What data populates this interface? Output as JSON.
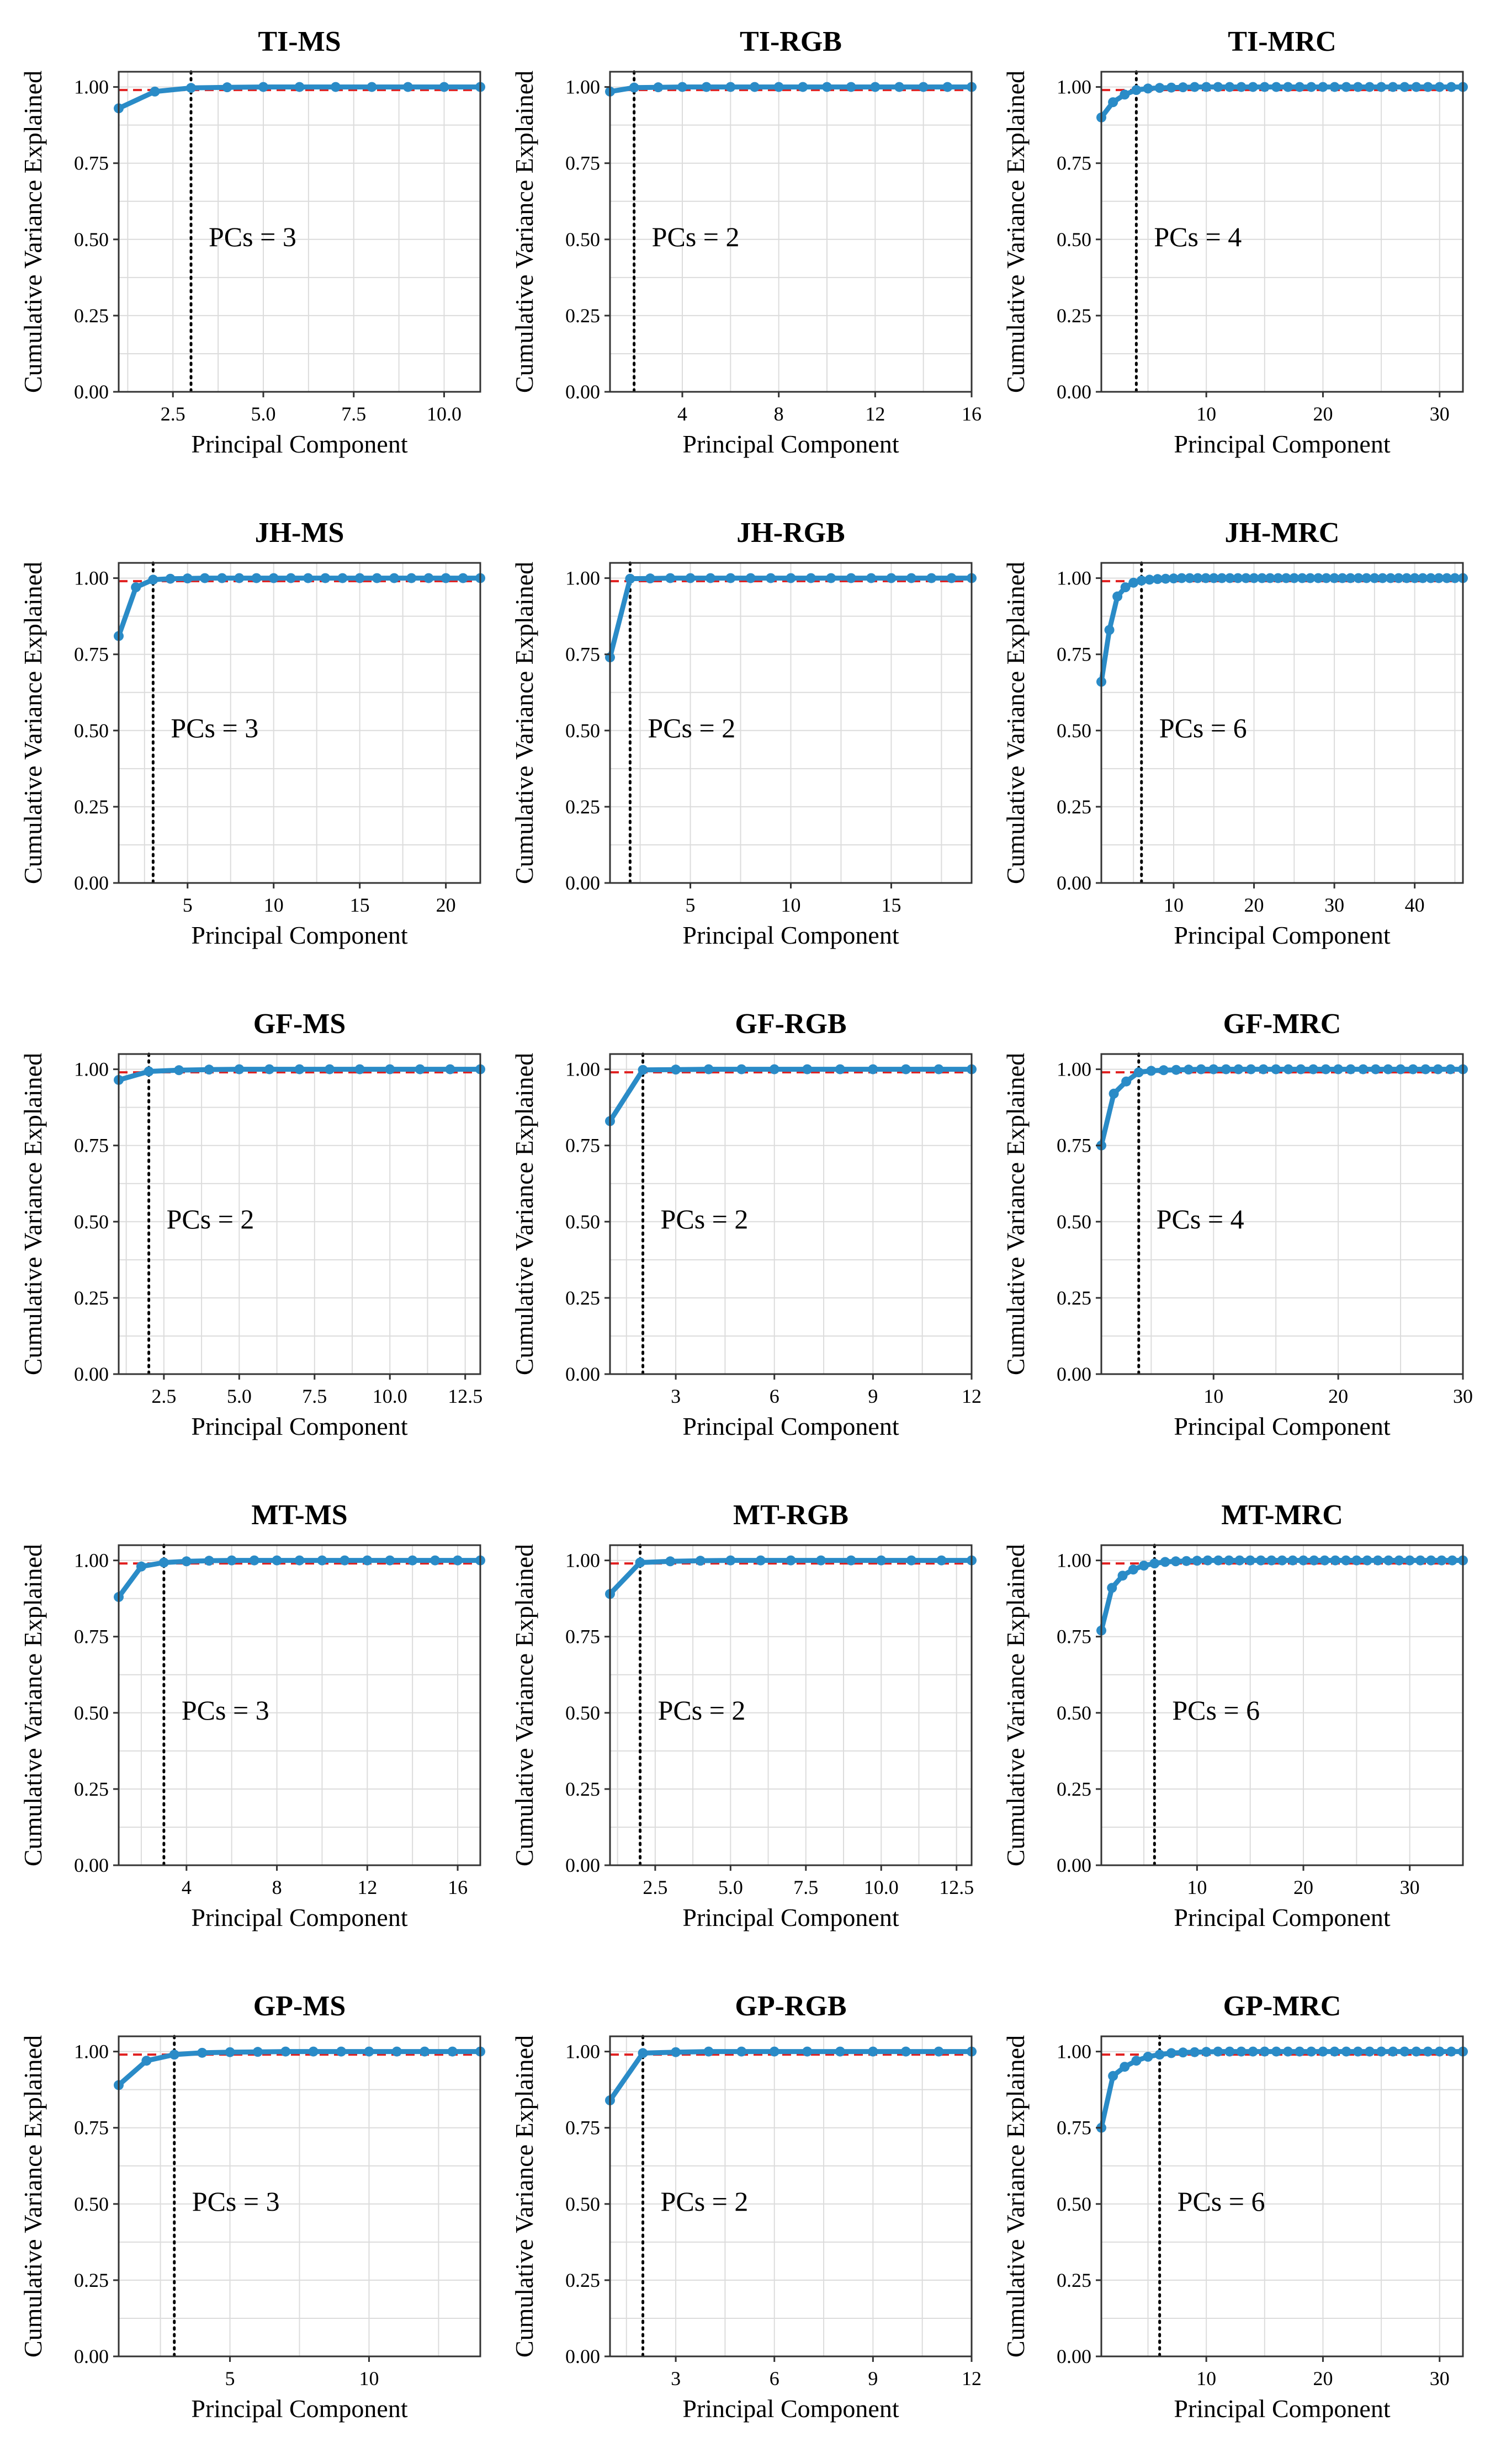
{
  "chart_data": [
    {
      "type": "line",
      "title": "TI-MS",
      "xlabel": "Principal Component",
      "ylabel": "Cumulative Variance Explained",
      "x": [
        1,
        2,
        3,
        4,
        5,
        6,
        7,
        8,
        9,
        10,
        11
      ],
      "values": [
        0.93,
        0.985,
        0.997,
        0.999,
        1.0,
        1.0,
        1.0,
        1.0,
        1.0,
        1.0,
        1.0
      ],
      "xlim": [
        1,
        11
      ],
      "ylim": [
        0,
        1.05
      ],
      "xticks": [
        2.5,
        5.0,
        7.5,
        10.0
      ],
      "xtick_labels": [
        "2.5",
        "5.0",
        "7.5",
        "10.0"
      ],
      "yticks": [
        0,
        0.25,
        0.5,
        0.75,
        1.0
      ],
      "ytick_labels": [
        "0.00",
        "0.25",
        "0.50",
        "0.75",
        "1.00"
      ],
      "threshold": 0.99,
      "vline": 3,
      "annotation": "PCs = 3",
      "grid": true
    },
    {
      "type": "line",
      "title": "TI-RGB",
      "xlabel": "Principal Component",
      "ylabel": "Cumulative Variance Explained",
      "x": [
        1,
        2,
        3,
        4,
        5,
        6,
        7,
        8,
        9,
        10,
        11,
        12,
        13,
        14,
        15,
        16
      ],
      "values": [
        0.985,
        0.998,
        0.999,
        1.0,
        1.0,
        1.0,
        1.0,
        1.0,
        1.0,
        1.0,
        1.0,
        1.0,
        1.0,
        1.0,
        1.0,
        1.0
      ],
      "xlim": [
        1,
        16
      ],
      "ylim": [
        0,
        1.05
      ],
      "xticks": [
        4,
        8,
        12,
        16
      ],
      "xtick_labels": [
        "4",
        "8",
        "12",
        "16"
      ],
      "yticks": [
        0,
        0.25,
        0.5,
        0.75,
        1.0
      ],
      "ytick_labels": [
        "0.00",
        "0.25",
        "0.50",
        "0.75",
        "1.00"
      ],
      "threshold": 0.99,
      "vline": 2,
      "annotation": "PCs = 2",
      "grid": true
    },
    {
      "type": "line",
      "title": "TI-MRC",
      "xlabel": "Principal Component",
      "ylabel": "Cumulative Variance Explained",
      "x": [
        1,
        2,
        3,
        4,
        5,
        6,
        7,
        8,
        9,
        10,
        11,
        12,
        13,
        14,
        15,
        16,
        17,
        18,
        19,
        20,
        21,
        22,
        23,
        24,
        25,
        26,
        27,
        28,
        29,
        30,
        31,
        32
      ],
      "values": [
        0.9,
        0.95,
        0.975,
        0.99,
        0.995,
        0.997,
        0.998,
        0.999,
        1,
        1,
        1,
        1,
        1,
        1,
        1,
        1,
        1,
        1,
        1,
        1,
        1,
        1,
        1,
        1,
        1,
        1,
        1,
        1,
        1,
        1,
        1,
        1
      ],
      "xlim": [
        1,
        32
      ],
      "ylim": [
        0,
        1.05
      ],
      "xticks": [
        10,
        20,
        30
      ],
      "xtick_labels": [
        "10",
        "20",
        "30"
      ],
      "yticks": [
        0,
        0.25,
        0.5,
        0.75,
        1.0
      ],
      "ytick_labels": [
        "0.00",
        "0.25",
        "0.50",
        "0.75",
        "1.00"
      ],
      "threshold": 0.99,
      "vline": 4,
      "annotation": "PCs = 4",
      "grid": true
    },
    {
      "type": "line",
      "title": "JH-MS",
      "xlabel": "Principal Component",
      "ylabel": "Cumulative Variance Explained",
      "x": [
        1,
        2,
        3,
        4,
        5,
        6,
        7,
        8,
        9,
        10,
        11,
        12,
        13,
        14,
        15,
        16,
        17,
        18,
        19,
        20,
        21,
        22
      ],
      "values": [
        0.81,
        0.97,
        0.995,
        0.998,
        0.999,
        1,
        1,
        1,
        1,
        1,
        1,
        1,
        1,
        1,
        1,
        1,
        1,
        1,
        1,
        1,
        1,
        1
      ],
      "xlim": [
        1,
        22
      ],
      "ylim": [
        0,
        1.05
      ],
      "xticks": [
        5,
        10,
        15,
        20
      ],
      "xtick_labels": [
        "5",
        "10",
        "15",
        "20"
      ],
      "yticks": [
        0,
        0.25,
        0.5,
        0.75,
        1.0
      ],
      "ytick_labels": [
        "0.00",
        "0.25",
        "0.50",
        "0.75",
        "1.00"
      ],
      "threshold": 0.99,
      "vline": 3,
      "annotation": "PCs = 3",
      "grid": true
    },
    {
      "type": "line",
      "title": "JH-RGB",
      "xlabel": "Principal Component",
      "ylabel": "Cumulative Variance Explained",
      "x": [
        1,
        2,
        3,
        4,
        5,
        6,
        7,
        8,
        9,
        10,
        11,
        12,
        13,
        14,
        15,
        16,
        17,
        18,
        19
      ],
      "values": [
        0.74,
        0.998,
        0.999,
        1,
        1,
        1,
        1,
        1,
        1,
        1,
        1,
        1,
        1,
        1,
        1,
        1,
        1,
        1,
        1
      ],
      "xlim": [
        1,
        19
      ],
      "ylim": [
        0,
        1.05
      ],
      "xticks": [
        5,
        10,
        15
      ],
      "xtick_labels": [
        "5",
        "10",
        "15"
      ],
      "yticks": [
        0,
        0.25,
        0.5,
        0.75,
        1.0
      ],
      "ytick_labels": [
        "0.00",
        "0.25",
        "0.50",
        "0.75",
        "1.00"
      ],
      "threshold": 0.99,
      "vline": 2,
      "annotation": "PCs = 2",
      "grid": true
    },
    {
      "type": "line",
      "title": "JH-MRC",
      "xlabel": "Principal Component",
      "ylabel": "Cumulative Variance Explained",
      "x": [
        1,
        2,
        3,
        4,
        5,
        6,
        7,
        8,
        9,
        10,
        11,
        12,
        13,
        14,
        15,
        16,
        17,
        18,
        19,
        20,
        21,
        22,
        23,
        24,
        25,
        26,
        27,
        28,
        29,
        30,
        31,
        32,
        33,
        34,
        35,
        36,
        37,
        38,
        39,
        40,
        41,
        42,
        43,
        44,
        45,
        46
      ],
      "values": [
        0.66,
        0.83,
        0.94,
        0.97,
        0.985,
        0.992,
        0.995,
        0.997,
        0.998,
        0.999,
        1,
        1,
        1,
        1,
        1,
        1,
        1,
        1,
        1,
        1,
        1,
        1,
        1,
        1,
        1,
        1,
        1,
        1,
        1,
        1,
        1,
        1,
        1,
        1,
        1,
        1,
        1,
        1,
        1,
        1,
        1,
        1,
        1,
        1,
        1,
        1
      ],
      "xlim": [
        1,
        46
      ],
      "ylim": [
        0,
        1.05
      ],
      "xticks": [
        10,
        20,
        30,
        40
      ],
      "xtick_labels": [
        "10",
        "20",
        "30",
        "40"
      ],
      "yticks": [
        0,
        0.25,
        0.5,
        0.75,
        1.0
      ],
      "ytick_labels": [
        "0.00",
        "0.25",
        "0.50",
        "0.75",
        "1.00"
      ],
      "threshold": 0.99,
      "vline": 6,
      "annotation": "PCs = 6",
      "grid": true
    },
    {
      "type": "line",
      "title": "GF-MS",
      "xlabel": "Principal Component",
      "ylabel": "Cumulative Variance Explained",
      "x": [
        1,
        2,
        3,
        4,
        5,
        6,
        7,
        8,
        9,
        10,
        11,
        12,
        13
      ],
      "values": [
        0.965,
        0.993,
        0.997,
        0.999,
        1,
        1,
        1,
        1,
        1,
        1,
        1,
        1,
        1
      ],
      "xlim": [
        1,
        13
      ],
      "ylim": [
        0,
        1.05
      ],
      "xticks": [
        2.5,
        5.0,
        7.5,
        10.0,
        12.5
      ],
      "xtick_labels": [
        "2.5",
        "5.0",
        "7.5",
        "10.0",
        "12.5"
      ],
      "yticks": [
        0,
        0.25,
        0.5,
        0.75,
        1.0
      ],
      "ytick_labels": [
        "0.00",
        "0.25",
        "0.50",
        "0.75",
        "1.00"
      ],
      "threshold": 0.99,
      "vline": 2,
      "annotation": "PCs = 2",
      "grid": true
    },
    {
      "type": "line",
      "title": "GF-RGB",
      "xlabel": "Principal Component",
      "ylabel": "Cumulative Variance Explained",
      "x": [
        1,
        2,
        3,
        4,
        5,
        6,
        7,
        8,
        9,
        10,
        11,
        12
      ],
      "values": [
        0.83,
        0.998,
        0.999,
        1,
        1,
        1,
        1,
        1,
        1,
        1,
        1,
        1
      ],
      "xlim": [
        1,
        12
      ],
      "ylim": [
        0,
        1.05
      ],
      "xticks": [
        3,
        6,
        9,
        12
      ],
      "xtick_labels": [
        "3",
        "6",
        "9",
        "12"
      ],
      "yticks": [
        0,
        0.25,
        0.5,
        0.75,
        1.0
      ],
      "ytick_labels": [
        "0.00",
        "0.25",
        "0.50",
        "0.75",
        "1.00"
      ],
      "threshold": 0.99,
      "vline": 2,
      "annotation": "PCs = 2",
      "grid": true
    },
    {
      "type": "line",
      "title": "GF-MRC",
      "xlabel": "Principal Component",
      "ylabel": "Cumulative Variance Explained",
      "x": [
        1,
        2,
        3,
        4,
        5,
        6,
        7,
        8,
        9,
        10,
        11,
        12,
        13,
        14,
        15,
        16,
        17,
        18,
        19,
        20,
        21,
        22,
        23,
        24,
        25,
        26,
        27,
        28,
        29,
        30
      ],
      "values": [
        0.75,
        0.92,
        0.96,
        0.99,
        0.995,
        0.997,
        0.998,
        0.999,
        1,
        1,
        1,
        1,
        1,
        1,
        1,
        1,
        1,
        1,
        1,
        1,
        1,
        1,
        1,
        1,
        1,
        1,
        1,
        1,
        1,
        1
      ],
      "xlim": [
        1,
        30
      ],
      "ylim": [
        0,
        1.05
      ],
      "xticks": [
        10,
        20,
        30
      ],
      "xtick_labels": [
        "10",
        "20",
        "30"
      ],
      "yticks": [
        0,
        0.25,
        0.5,
        0.75,
        1.0
      ],
      "ytick_labels": [
        "0.00",
        "0.25",
        "0.50",
        "0.75",
        "1.00"
      ],
      "threshold": 0.99,
      "vline": 4,
      "annotation": "PCs = 4",
      "grid": true
    },
    {
      "type": "line",
      "title": "MT-MS",
      "xlabel": "Principal Component",
      "ylabel": "Cumulative Variance Explained",
      "x": [
        1,
        2,
        3,
        4,
        5,
        6,
        7,
        8,
        9,
        10,
        11,
        12,
        13,
        14,
        15,
        16,
        17
      ],
      "values": [
        0.88,
        0.98,
        0.993,
        0.997,
        0.999,
        1,
        1,
        1,
        1,
        1,
        1,
        1,
        1,
        1,
        1,
        1,
        1
      ],
      "xlim": [
        1,
        17
      ],
      "ylim": [
        0,
        1.05
      ],
      "xticks": [
        4,
        8,
        12,
        16
      ],
      "xtick_labels": [
        "4",
        "8",
        "12",
        "16"
      ],
      "yticks": [
        0,
        0.25,
        0.5,
        0.75,
        1.0
      ],
      "ytick_labels": [
        "0.00",
        "0.25",
        "0.50",
        "0.75",
        "1.00"
      ],
      "threshold": 0.99,
      "vline": 3,
      "annotation": "PCs = 3",
      "grid": true
    },
    {
      "type": "line",
      "title": "MT-RGB",
      "xlabel": "Principal Component",
      "ylabel": "Cumulative Variance Explained",
      "x": [
        1,
        2,
        3,
        4,
        5,
        6,
        7,
        8,
        9,
        10,
        11,
        12,
        13
      ],
      "values": [
        0.89,
        0.993,
        0.997,
        0.999,
        1,
        1,
        1,
        1,
        1,
        1,
        1,
        1,
        1
      ],
      "xlim": [
        1,
        13
      ],
      "ylim": [
        0,
        1.05
      ],
      "xticks": [
        2.5,
        5.0,
        7.5,
        10.0,
        12.5
      ],
      "xtick_labels": [
        "2.5",
        "5.0",
        "7.5",
        "10.0",
        "12.5"
      ],
      "yticks": [
        0,
        0.25,
        0.5,
        0.75,
        1.0
      ],
      "ytick_labels": [
        "0.00",
        "0.25",
        "0.50",
        "0.75",
        "1.00"
      ],
      "threshold": 0.99,
      "vline": 2,
      "annotation": "PCs = 2",
      "grid": true
    },
    {
      "type": "line",
      "title": "MT-MRC",
      "xlabel": "Principal Component",
      "ylabel": "Cumulative Variance Explained",
      "x": [
        1,
        2,
        3,
        4,
        5,
        6,
        7,
        8,
        9,
        10,
        11,
        12,
        13,
        14,
        15,
        16,
        17,
        18,
        19,
        20,
        21,
        22,
        23,
        24,
        25,
        26,
        27,
        28,
        29,
        30,
        31,
        32,
        33,
        34,
        35
      ],
      "values": [
        0.77,
        0.91,
        0.95,
        0.97,
        0.983,
        0.99,
        0.995,
        0.997,
        0.998,
        0.999,
        1,
        1,
        1,
        1,
        1,
        1,
        1,
        1,
        1,
        1,
        1,
        1,
        1,
        1,
        1,
        1,
        1,
        1,
        1,
        1,
        1,
        1,
        1,
        1,
        1
      ],
      "xlim": [
        1,
        35
      ],
      "ylim": [
        0,
        1.05
      ],
      "xticks": [
        10,
        20,
        30
      ],
      "xtick_labels": [
        "10",
        "20",
        "30"
      ],
      "yticks": [
        0,
        0.25,
        0.5,
        0.75,
        1.0
      ],
      "ytick_labels": [
        "0.00",
        "0.25",
        "0.50",
        "0.75",
        "1.00"
      ],
      "threshold": 0.99,
      "vline": 6,
      "annotation": "PCs = 6",
      "grid": true
    },
    {
      "type": "line",
      "title": "GP-MS",
      "xlabel": "Principal Component",
      "ylabel": "Cumulative Variance Explained",
      "x": [
        1,
        2,
        3,
        4,
        5,
        6,
        7,
        8,
        9,
        10,
        11,
        12,
        13,
        14
      ],
      "values": [
        0.89,
        0.97,
        0.99,
        0.996,
        0.998,
        0.999,
        1,
        1,
        1,
        1,
        1,
        1,
        1,
        1
      ],
      "xlim": [
        1,
        14
      ],
      "ylim": [
        0,
        1.05
      ],
      "xticks": [
        5,
        10
      ],
      "xtick_labels": [
        "5",
        "10"
      ],
      "yticks": [
        0,
        0.25,
        0.5,
        0.75,
        1.0
      ],
      "ytick_labels": [
        "0.00",
        "0.25",
        "0.50",
        "0.75",
        "1.00"
      ],
      "threshold": 0.99,
      "vline": 3,
      "annotation": "PCs = 3",
      "grid": true
    },
    {
      "type": "line",
      "title": "GP-RGB",
      "xlabel": "Principal Component",
      "ylabel": "Cumulative Variance Explained",
      "x": [
        1,
        2,
        3,
        4,
        5,
        6,
        7,
        8,
        9,
        10,
        11,
        12
      ],
      "values": [
        0.84,
        0.995,
        0.998,
        1,
        1,
        1,
        1,
        1,
        1,
        1,
        1,
        1
      ],
      "xlim": [
        1,
        12
      ],
      "ylim": [
        0,
        1.05
      ],
      "xticks": [
        3,
        6,
        9,
        12
      ],
      "xtick_labels": [
        "3",
        "6",
        "9",
        "12"
      ],
      "yticks": [
        0,
        0.25,
        0.5,
        0.75,
        1.0
      ],
      "ytick_labels": [
        "0.00",
        "0.25",
        "0.50",
        "0.75",
        "1.00"
      ],
      "threshold": 0.99,
      "vline": 2,
      "annotation": "PCs = 2",
      "grid": true
    },
    {
      "type": "line",
      "title": "GP-MRC",
      "xlabel": "Principal Component",
      "ylabel": "Cumulative Variance Explained",
      "x": [
        1,
        2,
        3,
        4,
        5,
        6,
        7,
        8,
        9,
        10,
        11,
        12,
        13,
        14,
        15,
        16,
        17,
        18,
        19,
        20,
        21,
        22,
        23,
        24,
        25,
        26,
        27,
        28,
        29,
        30,
        31,
        32
      ],
      "values": [
        0.75,
        0.92,
        0.95,
        0.97,
        0.983,
        0.99,
        0.995,
        0.997,
        0.998,
        0.999,
        1,
        1,
        1,
        1,
        1,
        1,
        1,
        1,
        1,
        1,
        1,
        1,
        1,
        1,
        1,
        1,
        1,
        1,
        1,
        1,
        1,
        1
      ],
      "xlim": [
        1,
        32
      ],
      "ylim": [
        0,
        1.05
      ],
      "xticks": [
        10,
        20,
        30
      ],
      "xtick_labels": [
        "10",
        "20",
        "30"
      ],
      "yticks": [
        0,
        0.25,
        0.5,
        0.75,
        1.0
      ],
      "ytick_labels": [
        "0.00",
        "0.25",
        "0.50",
        "0.75",
        "1.00"
      ],
      "threshold": 0.99,
      "vline": 6,
      "annotation": "PCs = 6",
      "grid": true
    }
  ],
  "colors": {
    "line": "#2a8bc7",
    "threshold": "#e02020",
    "grid": "#dcdcdc",
    "frame": "#333333",
    "vline": "#000000"
  }
}
